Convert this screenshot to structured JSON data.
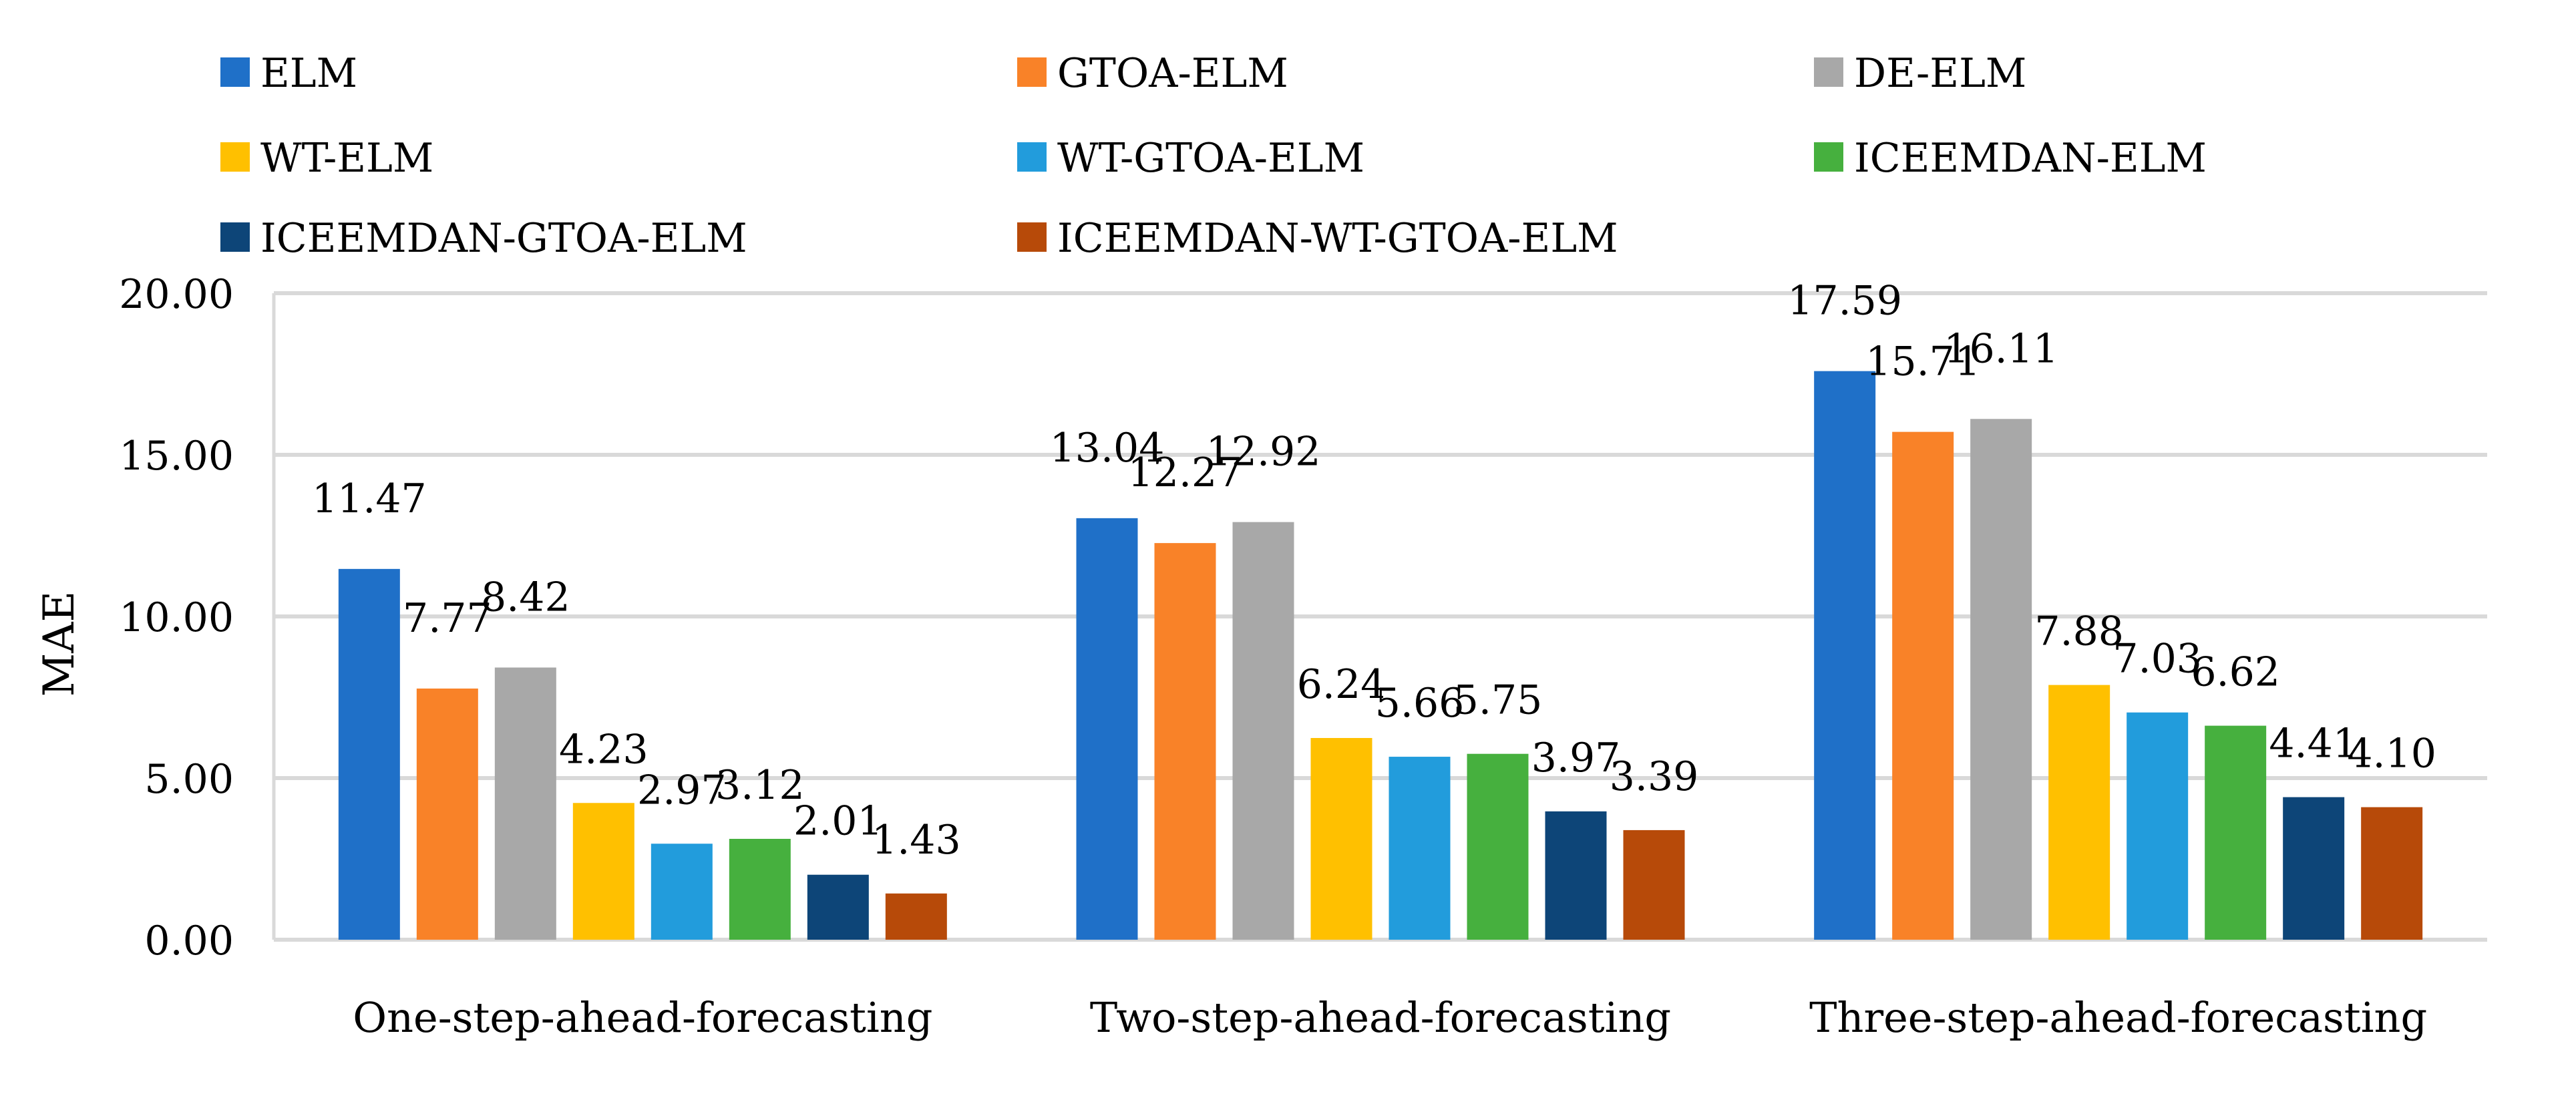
{
  "chart_data": {
    "type": "bar",
    "title": "",
    "xlabel": "",
    "ylabel": "MAE",
    "ylim": [
      0,
      20
    ],
    "yticks": [
      "0.00",
      "5.00",
      "10.00",
      "15.00",
      "20.00"
    ],
    "grid": true,
    "legend_position": "top",
    "categories": [
      "One-step-ahead-forecasting",
      "Two-step-ahead-forecasting",
      "Three-step-ahead-forecasting"
    ],
    "series": [
      {
        "name": "ELM",
        "color": "#1f70c8",
        "values": [
          11.47,
          13.04,
          17.59
        ],
        "labels": [
          "11.47",
          "13.04",
          "17.59"
        ]
      },
      {
        "name": "GTOA-ELM",
        "color": "#f98228",
        "values": [
          7.77,
          12.27,
          15.71
        ],
        "labels": [
          "7.77",
          "12.27",
          "15.71"
        ]
      },
      {
        "name": "DE-ELM",
        "color": "#a8a8a8",
        "values": [
          8.42,
          12.92,
          16.11
        ],
        "labels": [
          "8.42",
          "12.92",
          "16.11"
        ]
      },
      {
        "name": "WT-ELM",
        "color": "#ffc000",
        "values": [
          4.23,
          6.24,
          7.88
        ],
        "labels": [
          "4.23",
          "6.24",
          "7.88"
        ]
      },
      {
        "name": "WT-GTOA-ELM",
        "color": "#229cdc",
        "values": [
          2.97,
          5.66,
          7.03
        ],
        "labels": [
          "2.97",
          "5.66",
          "7.03"
        ]
      },
      {
        "name": "ICEEMDAN-ELM",
        "color": "#46b03e",
        "values": [
          3.12,
          5.75,
          6.62
        ],
        "labels": [
          "3.12",
          "5.75",
          "6.62"
        ]
      },
      {
        "name": "ICEEMDAN-GTOA-ELM",
        "color": "#0d4578",
        "values": [
          2.01,
          3.97,
          4.41
        ],
        "labels": [
          "2.01",
          "3.97",
          "4.41"
        ]
      },
      {
        "name": "ICEEMDAN-WT-GTOA-ELM",
        "color": "#b74a09",
        "values": [
          1.43,
          3.39,
          4.1
        ],
        "labels": [
          "1.43",
          "3.39",
          "4.10"
        ]
      }
    ]
  }
}
